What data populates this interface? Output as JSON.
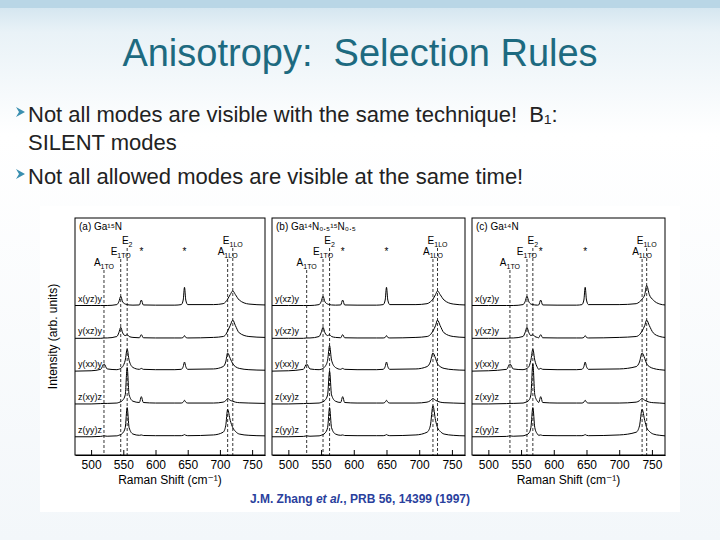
{
  "slide": {
    "title": "Anisotropy:  Selection Rules",
    "bullets": [
      [
        "Not all modes are visible with the same technique!  B₁:",
        "SILENT modes"
      ],
      [
        "Not all allowed modes are visible at the same time!"
      ]
    ],
    "citation": [
      "J.M. Zhang ",
      "et al.",
      ", PRB 56, 14399 (1997)"
    ]
  },
  "chart_data": [
    {
      "type": "line",
      "title": "(a) Ga¹⁵N",
      "xlabel": "Raman Shift (cm⁻¹)",
      "ylabel": "Intensity (arb. units)",
      "x": [
        475,
        500,
        515,
        520,
        525,
        540,
        543,
        546,
        549,
        553,
        556,
        559,
        565,
        575,
        578,
        581,
        600,
        630,
        640,
        643,
        645,
        647,
        650,
        690,
        705,
        709,
        712,
        716,
        720,
        724,
        730,
        745,
        770
      ],
      "xlim": [
        475,
        770
      ],
      "xticks": [
        500,
        550,
        600,
        650,
        700,
        750
      ],
      "ylim": [
        0,
        13
      ],
      "tick_labels": "x",
      "color": "#000000",
      "series": [
        {
          "name": "x(yz)y",
          "values": [
            8.2,
            8.2,
            8.2,
            8.2,
            8.2,
            8.25,
            8.4,
            8.7,
            8.4,
            8.28,
            8.25,
            8.23,
            8.22,
            8.23,
            8.5,
            8.23,
            8.22,
            8.22,
            8.25,
            8.5,
            9.2,
            8.5,
            8.25,
            8.25,
            8.3,
            8.4,
            8.55,
            8.8,
            9.0,
            8.8,
            8.5,
            8.28,
            8.23
          ]
        },
        {
          "name": "y(xz)y",
          "values": [
            6.4,
            6.4,
            6.4,
            6.42,
            6.42,
            6.5,
            6.7,
            7.0,
            6.7,
            6.55,
            6.6,
            6.5,
            6.45,
            6.43,
            6.6,
            6.43,
            6.42,
            6.42,
            6.42,
            6.45,
            6.55,
            6.45,
            6.42,
            6.45,
            6.5,
            6.6,
            6.8,
            7.1,
            7.4,
            7.1,
            6.7,
            6.5,
            6.45
          ]
        },
        {
          "name": "y(xx)y",
          "values": [
            4.6,
            4.62,
            4.7,
            5.0,
            4.72,
            4.68,
            4.7,
            4.75,
            4.85,
            5.2,
            5.8,
            5.2,
            4.8,
            4.7,
            4.75,
            4.7,
            4.68,
            4.68,
            4.7,
            4.85,
            5.1,
            4.85,
            4.7,
            4.72,
            4.85,
            5.1,
            5.6,
            5.3,
            5.0,
            4.85,
            4.75,
            4.68,
            4.65
          ]
        },
        {
          "name": "z(xy)z",
          "values": [
            2.8,
            2.8,
            2.82,
            2.83,
            2.83,
            2.85,
            2.88,
            2.92,
            3.0,
            3.3,
            4.8,
            3.3,
            2.95,
            2.88,
            3.2,
            2.88,
            2.85,
            2.85,
            2.85,
            2.9,
            3.0,
            2.9,
            2.85,
            2.85,
            2.9,
            2.98,
            3.1,
            3.0,
            2.95,
            2.9,
            2.87,
            2.85,
            2.83
          ]
        },
        {
          "name": "z(yy)z",
          "values": [
            1.0,
            1.0,
            1.02,
            1.05,
            1.03,
            1.05,
            1.08,
            1.12,
            1.2,
            1.5,
            2.6,
            1.5,
            1.15,
            1.08,
            1.1,
            1.07,
            1.06,
            1.06,
            1.06,
            1.08,
            1.12,
            1.08,
            1.06,
            1.1,
            1.25,
            1.6,
            2.5,
            1.9,
            1.5,
            1.3,
            1.15,
            1.08,
            1.05
          ]
        }
      ],
      "annotations": [
        {
          "text": "A",
          "sub": "1TO",
          "x": 520
        },
        {
          "text": "E",
          "sub": "1TO",
          "x": 546
        },
        {
          "text": "E",
          "sub": "2",
          "x": 556
        },
        {
          "text": "A",
          "sub": "1LO",
          "x": 712
        },
        {
          "text": "E",
          "sub": "1LO",
          "x": 720
        },
        {
          "text": "*",
          "x": 578
        },
        {
          "text": "*",
          "x": 645
        }
      ]
    },
    {
      "type": "line",
      "title": "(b) Ga¹⁴N₀.₅¹⁵N₀.₅",
      "x": [
        475,
        500,
        523,
        528,
        533,
        547,
        550,
        553,
        556,
        560,
        563,
        566,
        572,
        580,
        583,
        586,
        605,
        635,
        645,
        648,
        650,
        652,
        655,
        695,
        712,
        717,
        721,
        725,
        728,
        732,
        738,
        752,
        770
      ],
      "xlim": [
        475,
        770
      ],
      "xticks": [
        500,
        550,
        600,
        650,
        700,
        750
      ],
      "ylim": [
        0,
        13
      ],
      "tick_labels": "x",
      "color": "#000000",
      "series": [
        {
          "name": "y(xz)y",
          "values": [
            8.2,
            8.2,
            8.2,
            8.2,
            8.2,
            8.25,
            8.4,
            8.7,
            8.4,
            8.28,
            8.25,
            8.23,
            8.22,
            8.23,
            8.5,
            8.23,
            8.22,
            8.22,
            8.25,
            8.5,
            9.2,
            8.5,
            8.25,
            8.25,
            8.3,
            8.4,
            8.55,
            8.8,
            9.0,
            8.8,
            8.5,
            8.28,
            8.23
          ]
        },
        {
          "name": "y(xz)y",
          "values": [
            6.4,
            6.4,
            6.4,
            6.42,
            6.42,
            6.5,
            6.7,
            7.0,
            6.7,
            6.55,
            6.6,
            6.5,
            6.45,
            6.43,
            6.6,
            6.43,
            6.42,
            6.42,
            6.42,
            6.45,
            6.55,
            6.45,
            6.42,
            6.45,
            6.5,
            6.6,
            6.8,
            7.1,
            7.4,
            7.1,
            6.7,
            6.5,
            6.45
          ]
        },
        {
          "name": "y(xx)y",
          "values": [
            4.6,
            4.62,
            4.7,
            5.0,
            4.72,
            4.68,
            4.7,
            4.75,
            4.85,
            5.2,
            6.0,
            5.2,
            4.8,
            4.7,
            4.75,
            4.7,
            4.68,
            4.68,
            4.7,
            4.85,
            5.1,
            4.85,
            4.7,
            4.72,
            4.85,
            5.1,
            5.6,
            5.3,
            5.0,
            4.85,
            4.75,
            4.68,
            4.65
          ]
        },
        {
          "name": "z(xy)z",
          "values": [
            2.8,
            2.8,
            2.82,
            2.83,
            2.83,
            2.85,
            2.88,
            2.92,
            3.0,
            3.3,
            4.6,
            3.3,
            2.95,
            2.88,
            3.2,
            2.88,
            2.85,
            2.85,
            2.85,
            2.9,
            3.0,
            2.9,
            2.85,
            2.85,
            2.9,
            2.98,
            3.1,
            3.0,
            2.95,
            2.9,
            2.87,
            2.85,
            2.83
          ]
        },
        {
          "name": "z(yy)z",
          "values": [
            1.0,
            1.0,
            1.02,
            1.05,
            1.03,
            1.05,
            1.08,
            1.12,
            1.2,
            1.5,
            2.6,
            1.5,
            1.15,
            1.08,
            1.1,
            1.07,
            1.06,
            1.06,
            1.06,
            1.08,
            1.12,
            1.08,
            1.06,
            1.1,
            1.25,
            1.6,
            2.7,
            1.9,
            1.5,
            1.3,
            1.15,
            1.08,
            1.05
          ]
        }
      ],
      "annotations": [
        {
          "text": "A",
          "sub": "1TO",
          "x": 528
        },
        {
          "text": "E",
          "sub": "1TO",
          "x": 553
        },
        {
          "text": "E",
          "sub": "2",
          "x": 563
        },
        {
          "text": "A",
          "sub": "1LO",
          "x": 721
        },
        {
          "text": "E",
          "sub": "1LO",
          "x": 728
        },
        {
          "text": "*",
          "x": 583
        },
        {
          "text": "*",
          "x": 650
        }
      ]
    },
    {
      "type": "line",
      "title": "(c) Ga¹⁴N",
      "xlabel": "Raman Shift (cm⁻¹)",
      "x": [
        475,
        500,
        528,
        533,
        538,
        553,
        556,
        559,
        562,
        565,
        568,
        571,
        575,
        577,
        580,
        583,
        605,
        635,
        643,
        646,
        648,
        650,
        653,
        700,
        726,
        731,
        735,
        739,
        742,
        746,
        752,
        762,
        770
      ],
      "xlim": [
        475,
        770
      ],
      "xticks": [
        500,
        550,
        600,
        650,
        700,
        750
      ],
      "ylim": [
        0,
        13
      ],
      "tick_labels": "x",
      "color": "#000000",
      "series": [
        {
          "name": "x(yz)y",
          "values": [
            8.2,
            8.2,
            8.2,
            8.2,
            8.2,
            8.25,
            8.4,
            8.7,
            8.4,
            8.28,
            8.25,
            8.23,
            8.22,
            8.23,
            8.5,
            8.23,
            8.22,
            8.22,
            8.25,
            8.5,
            9.2,
            8.5,
            8.25,
            8.25,
            8.3,
            8.4,
            8.55,
            8.8,
            9.3,
            8.8,
            8.5,
            8.28,
            8.23
          ]
        },
        {
          "name": "y(xz)y",
          "values": [
            6.4,
            6.4,
            6.4,
            6.42,
            6.42,
            6.5,
            6.7,
            7.0,
            6.7,
            6.55,
            6.6,
            6.5,
            6.45,
            6.43,
            6.6,
            6.43,
            6.42,
            6.42,
            6.42,
            6.45,
            6.55,
            6.45,
            6.42,
            6.45,
            6.5,
            6.6,
            6.8,
            7.1,
            7.4,
            7.1,
            6.7,
            6.5,
            6.45
          ]
        },
        {
          "name": "y(xx)y",
          "values": [
            4.6,
            4.62,
            4.7,
            5.0,
            4.72,
            4.68,
            4.7,
            4.75,
            4.85,
            5.2,
            5.8,
            5.2,
            4.8,
            4.7,
            4.75,
            4.7,
            4.68,
            4.68,
            4.7,
            4.85,
            5.1,
            4.85,
            4.7,
            4.72,
            4.85,
            5.1,
            5.6,
            5.3,
            5.0,
            4.85,
            4.75,
            4.68,
            4.65
          ]
        },
        {
          "name": "z(xy)z",
          "values": [
            2.8,
            2.8,
            2.82,
            2.83,
            2.83,
            2.85,
            2.88,
            2.92,
            3.0,
            3.3,
            5.0,
            3.3,
            2.95,
            2.88,
            3.2,
            2.88,
            2.85,
            2.85,
            2.85,
            2.9,
            3.0,
            2.9,
            2.85,
            2.85,
            2.9,
            2.98,
            3.1,
            3.0,
            2.95,
            2.9,
            2.87,
            2.85,
            2.83
          ]
        },
        {
          "name": "z(yy)z",
          "values": [
            1.0,
            1.0,
            1.02,
            1.05,
            1.03,
            1.05,
            1.08,
            1.12,
            1.2,
            1.5,
            2.6,
            1.5,
            1.15,
            1.08,
            1.1,
            1.07,
            1.06,
            1.06,
            1.06,
            1.08,
            1.12,
            1.08,
            1.06,
            1.1,
            1.25,
            1.6,
            2.5,
            1.9,
            1.5,
            1.3,
            1.15,
            1.08,
            1.05
          ]
        }
      ],
      "annotations": [
        {
          "text": "A",
          "sub": "1TO",
          "x": 533
        },
        {
          "text": "E",
          "sub": "1TO",
          "x": 559
        },
        {
          "text": "E",
          "sub": "2",
          "x": 568
        },
        {
          "text": "A",
          "sub": "1LO",
          "x": 735
        },
        {
          "text": "E",
          "sub": "1LO",
          "x": 742
        },
        {
          "text": "*",
          "x": 580
        },
        {
          "text": "*",
          "x": 648
        }
      ]
    }
  ]
}
